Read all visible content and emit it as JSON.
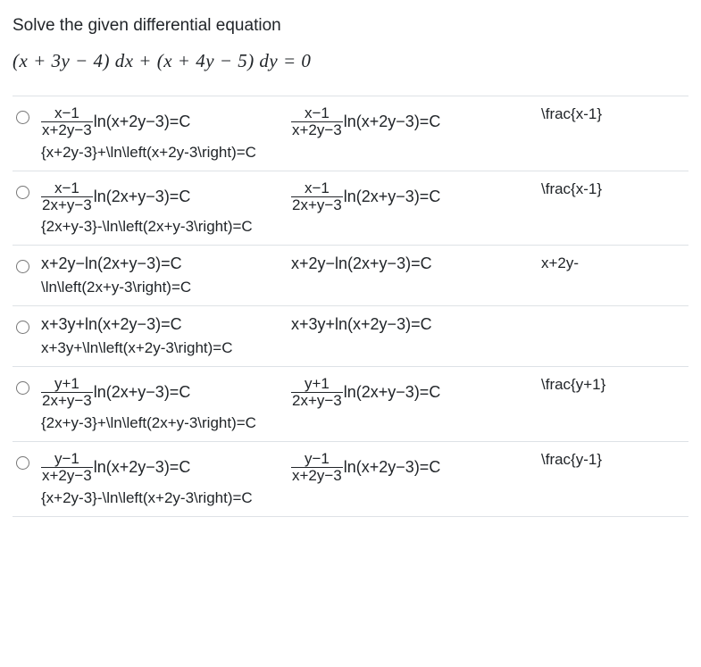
{
  "question": "Solve the given differential equation",
  "equation_display": "(x + 3y − 4) dx + (x + 4y − 5) dy = 0",
  "options": [
    {
      "has_frac": true,
      "frac_num_a": "x−1",
      "frac_den_a": "x+2y−3",
      "after_a": "ln(x+2y−3)=C",
      "frac_num_b": "x−1",
      "frac_den_b": "x+2y−3",
      "after_b": "ln(x+2y−3)=C",
      "col_c": "\\frac{x-1}",
      "src": "{x+2y-3}+\\ln\\left(x+2y-3\\right)=C",
      "strike_a": true,
      "strike_b": true
    },
    {
      "has_frac": true,
      "frac_num_a": "x−1",
      "frac_den_a": "2x+y−3",
      "after_a": "ln(2x+y−3)=C",
      "frac_num_b": "x−1",
      "frac_den_b": "2x+y−3",
      "after_b": "ln(2x+y−3)=C",
      "col_c": "\\frac{x-1}",
      "src": "{2x+y-3}-\\ln\\left(2x+y-3\\right)=C",
      "strike_a": false,
      "strike_b": false
    },
    {
      "has_frac": false,
      "plain_a": "x+2y−ln(2x+y−3)=C",
      "plain_b": "x+2y−ln(2x+y−3)=C",
      "col_c": "x+2y-",
      "src": "\\ln\\left(2x+y-3\\right)=C",
      "strike_a": false,
      "strike_b": false
    },
    {
      "has_frac": false,
      "plain_a": "x+3y+ln(x+2y−3)=C",
      "plain_b": "x+3y+ln(x+2y−3)=C",
      "col_c": "",
      "src": "x+3y+\\ln\\left(x+2y-3\\right)=C",
      "strike_a": false,
      "strike_b": false
    },
    {
      "has_frac": true,
      "frac_num_a": "y+1",
      "frac_den_a": "2x+y−3",
      "after_a": "ln(2x+y−3)=C",
      "frac_num_b": "y+1",
      "frac_den_b": "2x+y−3",
      "after_b": "ln(2x+y−3)=C",
      "col_c": "\\frac{y+1}",
      "src": "{2x+y-3}+\\ln\\left(2x+y-3\\right)=C",
      "strike_a": true,
      "strike_b": true
    },
    {
      "has_frac": true,
      "frac_num_a": "y−1",
      "frac_den_a": "x+2y−3",
      "after_a": "ln(x+2y−3)=C",
      "frac_num_b": "y−1",
      "frac_den_b": "x+2y−3",
      "after_b": "ln(x+2y−3)=C",
      "col_c": "\\frac{y-1}",
      "src": "{x+2y-3}-\\ln\\left(x+2y-3\\right)=C",
      "strike_a": false,
      "strike_b": false
    }
  ],
  "colors": {
    "text": "#212529",
    "border": "#dee2e6",
    "background": "#ffffff"
  },
  "typography": {
    "question_fontsize": 19,
    "equation_fontsize": 21,
    "option_fontsize": 18,
    "latex_fontsize": 17
  }
}
